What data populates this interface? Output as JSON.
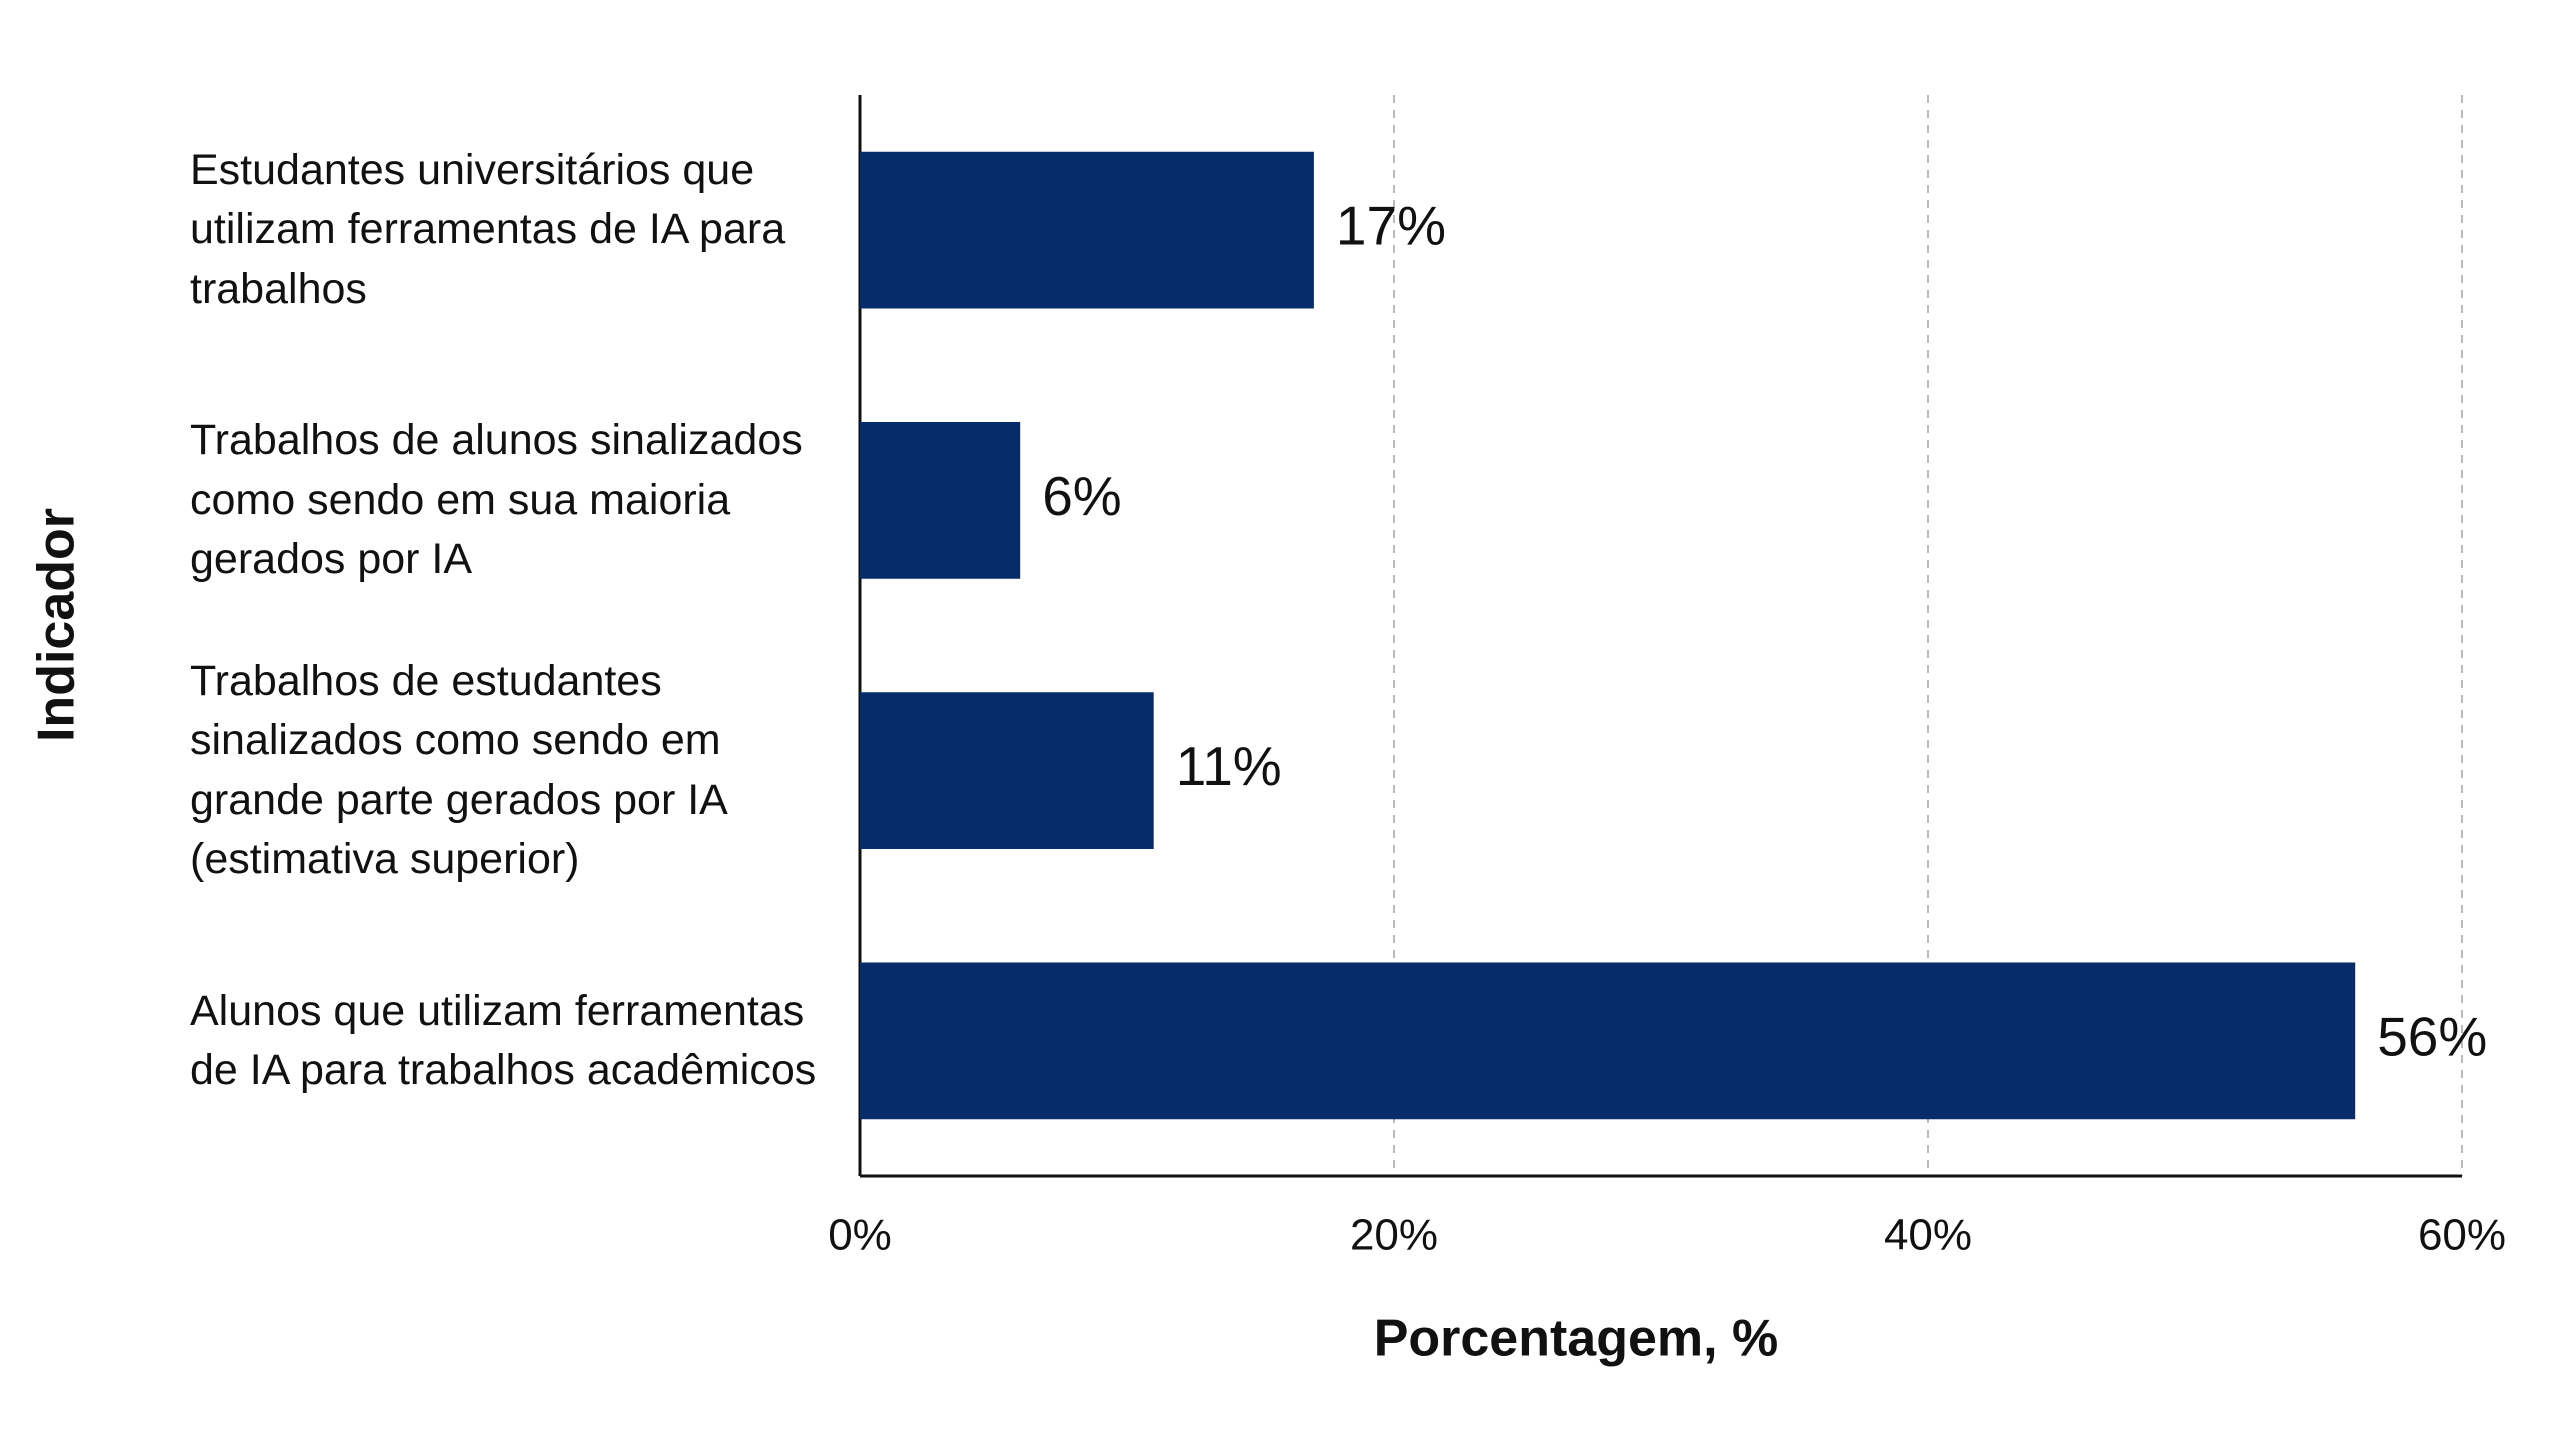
{
  "chart_data": {
    "type": "barh",
    "categories": [
      "Estudantes universitários que utilizam ferramentas de IA para trabalhos",
      "Trabalhos de alunos sinalizados como sendo em sua maioria gerados por IA",
      "Trabalhos de estudantes sinalizados como sendo em grande parte gerados por IA (estimativa superior)",
      "Alunos que utilizam ferramentas de IA para trabalhos acadêmicos"
    ],
    "values": [
      17,
      6,
      11,
      56
    ],
    "value_labels": [
      "17%",
      "6%",
      "11%",
      "56%"
    ],
    "color": "#062d69",
    "xlabel": "Porcentagem, %",
    "ylabel": "Indicador",
    "xlim": [
      0,
      60
    ],
    "xticks": [
      {
        "value": 0,
        "label": "0%"
      },
      {
        "value": 20,
        "label": "20%"
      },
      {
        "value": 40,
        "label": "40%"
      },
      {
        "value": 60,
        "label": "60%"
      }
    ],
    "grid": true
  }
}
